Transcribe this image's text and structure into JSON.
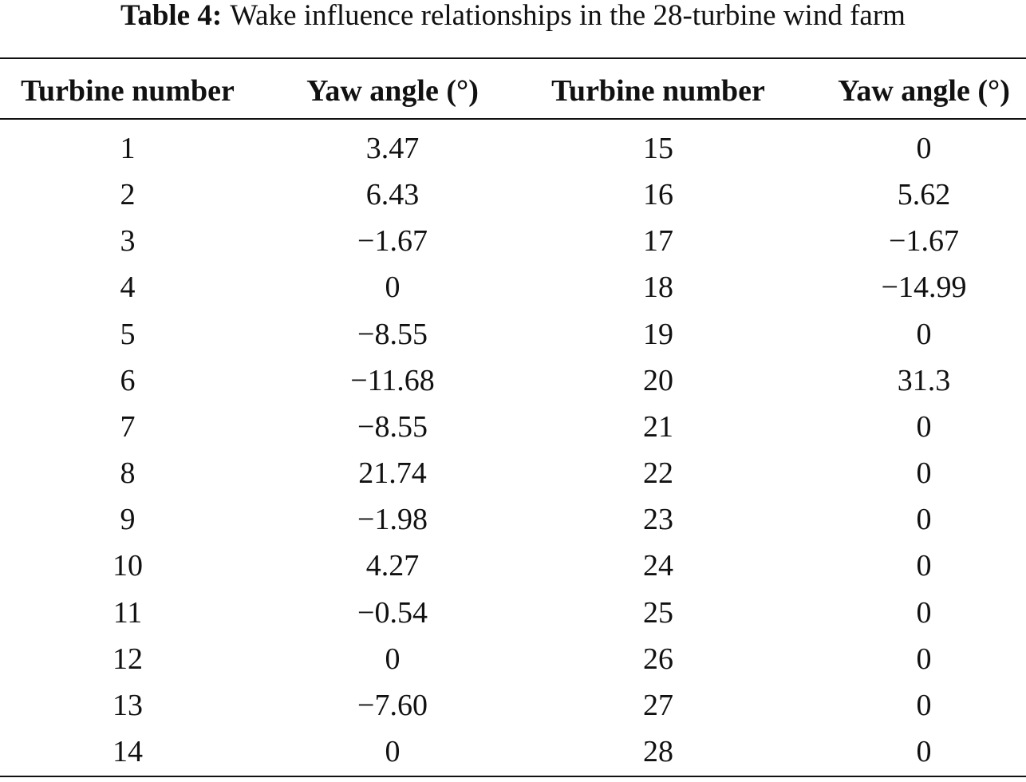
{
  "caption": {
    "label": "Table 4:",
    "text": "Wake influence relationships in the 28-turbine wind farm"
  },
  "table": {
    "header": [
      "Turbine number",
      "Yaw angle (°)",
      "Turbine number",
      "Yaw angle (°)"
    ],
    "rows": [
      [
        "1",
        "3.47",
        "15",
        "0"
      ],
      [
        "2",
        "6.43",
        "16",
        "5.62"
      ],
      [
        "3",
        "−1.67",
        "17",
        "−1.67"
      ],
      [
        "4",
        "0",
        "18",
        "−14.99"
      ],
      [
        "5",
        "−8.55",
        "19",
        "0"
      ],
      [
        "6",
        "−11.68",
        "20",
        "31.3"
      ],
      [
        "7",
        "−8.55",
        "21",
        "0"
      ],
      [
        "8",
        "21.74",
        "22",
        "0"
      ],
      [
        "9",
        "−1.98",
        "23",
        "0"
      ],
      [
        "10",
        "4.27",
        "24",
        "0"
      ],
      [
        "11",
        "−0.54",
        "25",
        "0"
      ],
      [
        "12",
        "0",
        "26",
        "0"
      ],
      [
        "13",
        "−7.60",
        "27",
        "0"
      ],
      [
        "14",
        "0",
        "28",
        "0"
      ]
    ]
  }
}
